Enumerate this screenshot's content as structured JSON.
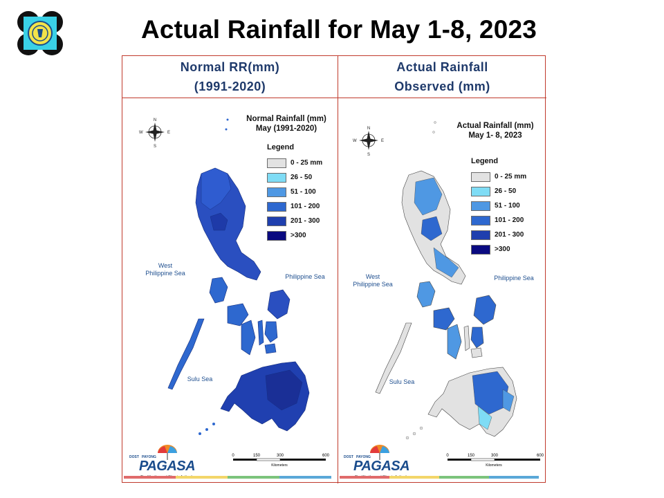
{
  "title": "Actual Rainfall for May 1-8, 2023",
  "left_panel": {
    "header_line1": "Normal RR(mm)",
    "header_line2": "(1991-2020)",
    "map_title_line1": "Normal Rainfall (mm)",
    "map_title_line2": "May (1991-2020)"
  },
  "right_panel": {
    "header_line1": "Actual Rainfall",
    "header_line2": "Observed  (mm)",
    "map_title_line1": "Actual Rainfall (mm)",
    "map_title_line2": "May 1- 8, 2023"
  },
  "legend": {
    "title": "Legend",
    "items": [
      {
        "label": "0 - 25 mm",
        "color": "#e2e2e2"
      },
      {
        "label": "26 - 50",
        "color": "#7fdcf5"
      },
      {
        "label": "51 - 100",
        "color": "#4f98e3"
      },
      {
        "label": "101 - 200",
        "color": "#2e68cf"
      },
      {
        "label": "201 - 300",
        "color": "#1f3fae"
      },
      {
        "label": ">300",
        "color": "#0a0a80"
      }
    ]
  },
  "labels": {
    "west_sea_line1": "West",
    "west_sea_line2": "Philippine Sea",
    "philippine_sea": "Philippine Sea",
    "sulu_sea": "Sulu Sea"
  },
  "compass": {
    "n": "N",
    "s": "S",
    "e": "E",
    "w": "W"
  },
  "scale_bar": {
    "ticks": [
      "0",
      "150",
      "300",
      "600"
    ],
    "unit": "Kilometers"
  },
  "brand": {
    "name": "PAGASA",
    "dost": "DOST",
    "payong": "PAYONG",
    "tagline": "The Weather and Climate Authority"
  },
  "stripe_colors": [
    "#e06b6b",
    "#f3d66a",
    "#7cc47c",
    "#5aa8d8"
  ]
}
